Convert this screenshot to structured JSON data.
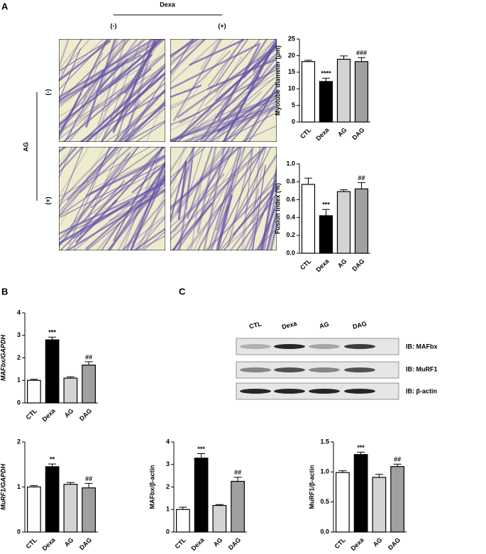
{
  "panel_labels": [
    "A",
    "B",
    "C"
  ],
  "micrograph": {
    "column_title": "Dexa",
    "column_labels": [
      "(-)",
      "(+)"
    ],
    "row_title": "AG",
    "row_labels": [
      "(-)",
      "(+)"
    ]
  },
  "blot": {
    "lanes": [
      "CTL",
      "Dexa",
      "AG",
      "DAG"
    ],
    "bands": [
      "IB: MAFbx",
      "IB: MuRF1",
      "IB: β-actin"
    ]
  },
  "chart_data": [
    {
      "type": "bar",
      "y_label": "Myotube diameter (μm)",
      "categories": [
        "CTL",
        "Dexa",
        "AG",
        "DAG"
      ],
      "values": [
        18.2,
        12.2,
        18.9,
        18.2
      ],
      "errors": [
        0.4,
        1.0,
        1.0,
        1.2
      ],
      "colors": [
        "#ffffff",
        "#000000",
        "#d3d3d3",
        "#a0a0a0"
      ],
      "annotations": [
        null,
        "****",
        null,
        "###"
      ],
      "ylim": [
        0,
        25
      ],
      "yticks": [
        0,
        5,
        10,
        15,
        20,
        25
      ]
    },
    {
      "type": "bar",
      "y_label": "Fusion index (%)",
      "categories": [
        "CTL",
        "Dexa",
        "AG",
        "DAG"
      ],
      "values": [
        0.77,
        0.42,
        0.69,
        0.72
      ],
      "errors": [
        0.07,
        0.07,
        0.02,
        0.07
      ],
      "colors": [
        "#ffffff",
        "#000000",
        "#d3d3d3",
        "#a0a0a0"
      ],
      "annotations": [
        null,
        "***",
        null,
        "##"
      ],
      "ylim": [
        0,
        1
      ],
      "yticks": [
        {
          "value": 0,
          "label": "0.0"
        },
        {
          "value": 0.2,
          "label": "0.2"
        },
        {
          "value": 0.4,
          "label": "0.4"
        },
        {
          "value": 0.6,
          "label": "0.6"
        },
        {
          "value": 0.8,
          "label": "0.8"
        },
        {
          "value": 1,
          "label": "1.0"
        }
      ]
    },
    {
      "type": "bar",
      "y_label": "MAFbx/GAPDH",
      "italic": true,
      "categories": [
        "CTL",
        "Dexa",
        "AG",
        "DAG"
      ],
      "values": [
        1.0,
        2.8,
        1.1,
        1.68
      ],
      "errors": [
        0.05,
        0.12,
        0.06,
        0.15
      ],
      "colors": [
        "#ffffff",
        "#000000",
        "#d3d3d3",
        "#a0a0a0"
      ],
      "annotations": [
        null,
        "***",
        null,
        "##"
      ],
      "ylim": [
        0,
        4
      ],
      "yticks": [
        0,
        1,
        2,
        3,
        4
      ]
    },
    {
      "type": "bar",
      "y_label": "MuRF1/GAPDH",
      "italic": true,
      "categories": [
        "CTL",
        "Dexa",
        "AG",
        "DAG"
      ],
      "values": [
        1.0,
        1.45,
        1.06,
        0.98
      ],
      "errors": [
        0.03,
        0.06,
        0.04,
        0.1
      ],
      "colors": [
        "#ffffff",
        "#000000",
        "#d3d3d3",
        "#a0a0a0"
      ],
      "annotations": [
        null,
        "**",
        null,
        "##"
      ],
      "ylim": [
        0,
        2
      ],
      "yticks": [
        0,
        1,
        2
      ]
    },
    {
      "type": "bar",
      "y_label": "MAFbx/β-actin",
      "categories": [
        "CTL",
        "Dexa",
        "AG",
        "DAG"
      ],
      "values": [
        1.0,
        3.28,
        1.18,
        2.25
      ],
      "errors": [
        0.1,
        0.2,
        0.04,
        0.18
      ],
      "colors": [
        "#ffffff",
        "#000000",
        "#d3d3d3",
        "#a0a0a0"
      ],
      "annotations": [
        null,
        "***",
        null,
        "##"
      ],
      "ylim": [
        0,
        4
      ],
      "yticks": [
        0,
        1,
        2,
        3,
        4
      ]
    },
    {
      "type": "bar",
      "y_label": "MuRF1/β-actin",
      "categories": [
        "CTL",
        "Dexa",
        "AG",
        "DAG"
      ],
      "values": [
        0.99,
        1.29,
        0.91,
        1.09
      ],
      "errors": [
        0.03,
        0.04,
        0.05,
        0.04
      ],
      "colors": [
        "#ffffff",
        "#000000",
        "#d3d3d3",
        "#a0a0a0"
      ],
      "annotations": [
        null,
        "***",
        null,
        "##"
      ],
      "ylim": [
        0,
        1.5
      ],
      "yticks": [
        {
          "value": 0,
          "label": "0.0"
        },
        {
          "value": 0.5,
          "label": "0.5"
        },
        {
          "value": 1,
          "label": "1.0"
        },
        {
          "value": 1.5,
          "label": "1.5"
        }
      ]
    }
  ]
}
